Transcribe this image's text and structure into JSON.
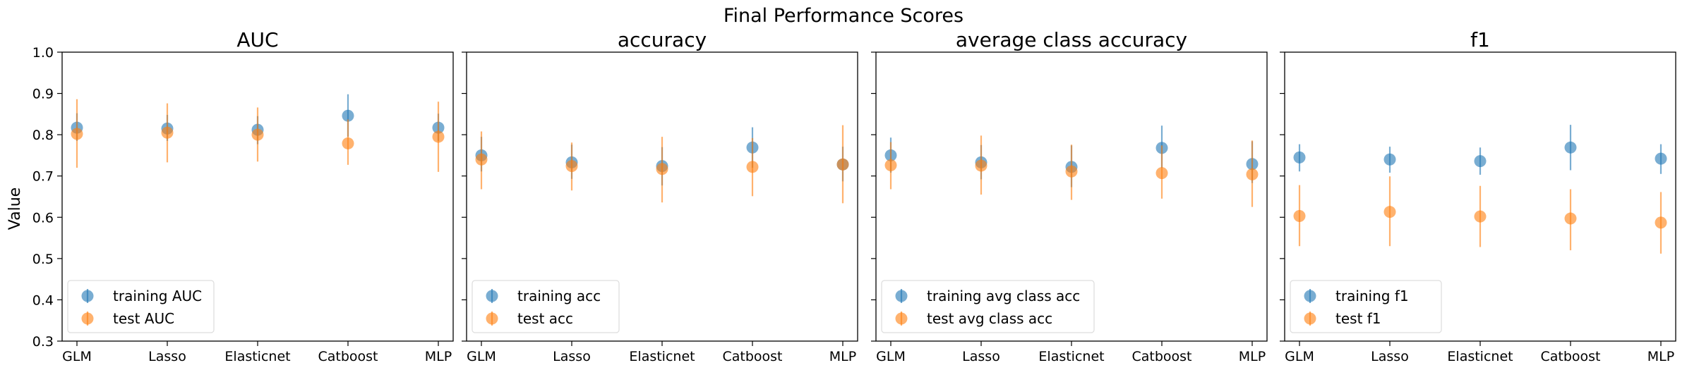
{
  "figure": {
    "suptitle": "Final Performance Scores",
    "ylabel": "Value",
    "colors": {
      "training": "#1f77b4",
      "test": "#ff7f0e"
    }
  },
  "chart_data": [
    {
      "type": "scatter",
      "title": "AUC",
      "categories": [
        "GLM",
        "Lasso",
        "Elasticnet",
        "Catboost",
        "MLP"
      ],
      "ylim": [
        0.3,
        1.0
      ],
      "yticks": [
        "0.3",
        "0.4",
        "0.5",
        "0.6",
        "0.7",
        "0.8",
        "0.9",
        "1.0"
      ],
      "legend_position": "lower-left",
      "series": [
        {
          "name": "training AUC",
          "color": "#1f77b4",
          "values": [
            0.817,
            0.815,
            0.812,
            0.846,
            0.817
          ],
          "err_low": [
            0.785,
            0.785,
            0.777,
            0.795,
            0.785
          ],
          "err_high": [
            0.852,
            0.848,
            0.845,
            0.898,
            0.851
          ]
        },
        {
          "name": "test AUC",
          "color": "#ff7f0e",
          "values": [
            0.802,
            0.805,
            0.8,
            0.779,
            0.795
          ],
          "err_low": [
            0.72,
            0.733,
            0.735,
            0.727,
            0.71
          ],
          "err_high": [
            0.886,
            0.876,
            0.866,
            0.837,
            0.88
          ]
        }
      ]
    },
    {
      "type": "scatter",
      "title": "accuracy",
      "categories": [
        "GLM",
        "Lasso",
        "Elasticnet",
        "Catboost",
        "MLP"
      ],
      "ylim": [
        0.3,
        1.0
      ],
      "yticks": [],
      "legend_position": "lower-left",
      "series": [
        {
          "name": "training acc",
          "color": "#1f77b4",
          "values": [
            0.75,
            0.733,
            0.724,
            0.769,
            0.728
          ],
          "err_low": [
            0.711,
            0.693,
            0.677,
            0.72,
            0.687
          ],
          "err_high": [
            0.795,
            0.776,
            0.77,
            0.818,
            0.771
          ]
        },
        {
          "name": "test acc",
          "color": "#ff7f0e",
          "values": [
            0.74,
            0.724,
            0.717,
            0.722,
            0.728
          ],
          "err_low": [
            0.668,
            0.665,
            0.636,
            0.651,
            0.634
          ],
          "err_high": [
            0.808,
            0.781,
            0.795,
            0.792,
            0.823
          ]
        }
      ]
    },
    {
      "type": "scatter",
      "title": "average class accuracy",
      "categories": [
        "GLM",
        "Lasso",
        "Elasticnet",
        "Catboost",
        "MLP"
      ],
      "ylim": [
        0.3,
        1.0
      ],
      "yticks": [],
      "legend_position": "lower-left",
      "series": [
        {
          "name": "training avg class acc",
          "color": "#1f77b4",
          "values": [
            0.75,
            0.733,
            0.722,
            0.768,
            0.729
          ],
          "err_low": [
            0.708,
            0.692,
            0.673,
            0.72,
            0.683
          ],
          "err_high": [
            0.793,
            0.775,
            0.774,
            0.822,
            0.784
          ]
        },
        {
          "name": "test avg class acc",
          "color": "#ff7f0e",
          "values": [
            0.726,
            0.725,
            0.711,
            0.707,
            0.704
          ],
          "err_low": [
            0.668,
            0.655,
            0.642,
            0.645,
            0.625
          ],
          "err_high": [
            0.782,
            0.798,
            0.776,
            0.774,
            0.786
          ]
        }
      ]
    },
    {
      "type": "scatter",
      "title": "f1",
      "categories": [
        "GLM",
        "Lasso",
        "Elasticnet",
        "Catboost",
        "MLP"
      ],
      "ylim": [
        0.3,
        1.0
      ],
      "yticks": [],
      "legend_position": "lower-left",
      "series": [
        {
          "name": "training f1",
          "color": "#1f77b4",
          "values": [
            0.745,
            0.74,
            0.736,
            0.769,
            0.742
          ],
          "err_low": [
            0.711,
            0.708,
            0.703,
            0.714,
            0.705
          ],
          "err_high": [
            0.777,
            0.771,
            0.769,
            0.824,
            0.777
          ]
        },
        {
          "name": "test f1",
          "color": "#ff7f0e",
          "values": [
            0.603,
            0.613,
            0.602,
            0.597,
            0.587
          ],
          "err_low": [
            0.53,
            0.53,
            0.528,
            0.52,
            0.512
          ],
          "err_high": [
            0.678,
            0.699,
            0.676,
            0.668,
            0.661
          ]
        }
      ]
    }
  ]
}
